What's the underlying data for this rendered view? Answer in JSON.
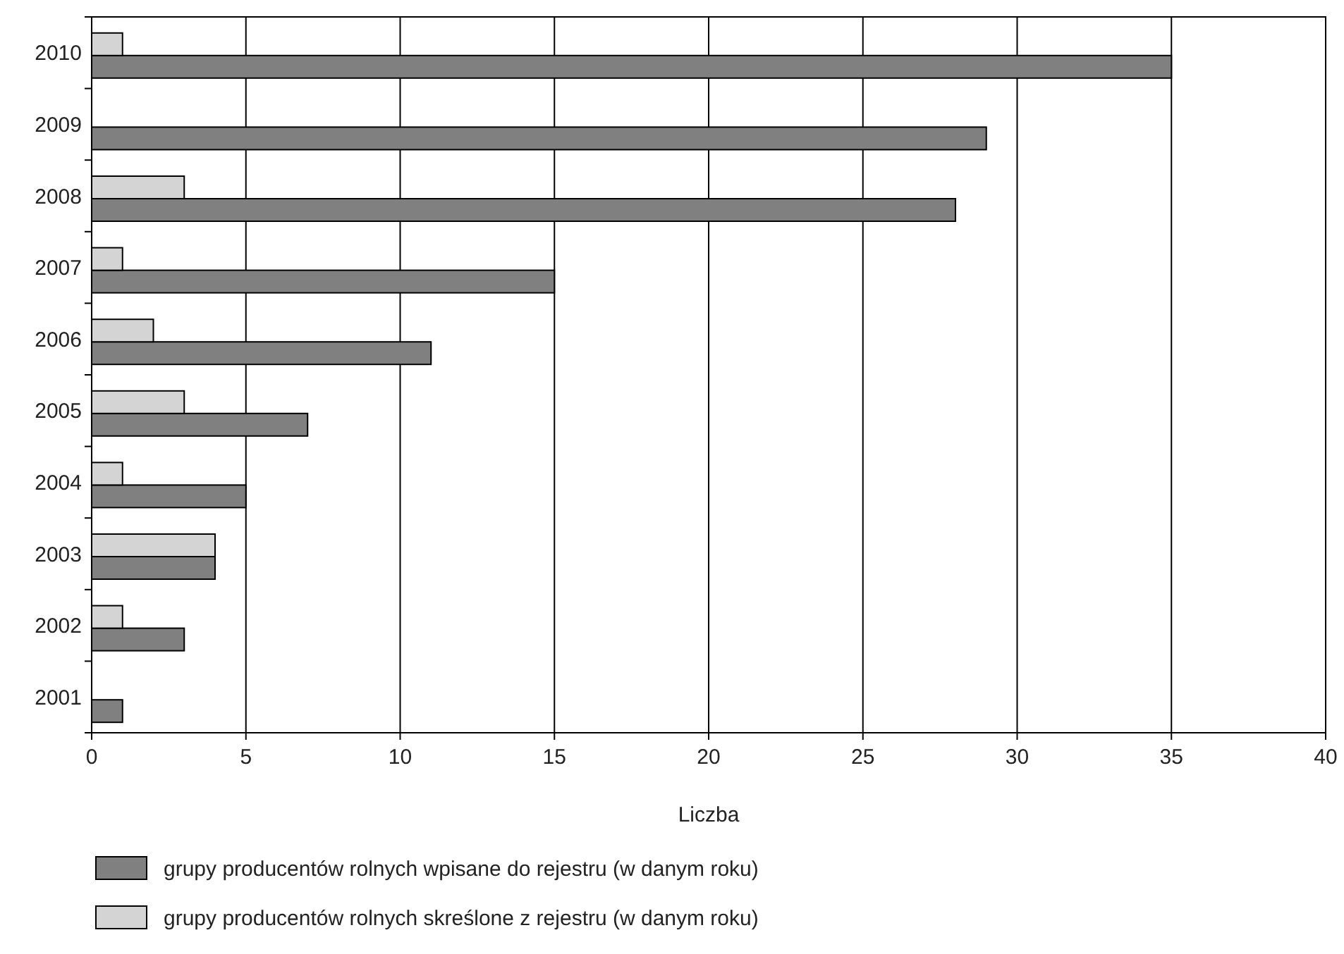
{
  "chart_data": {
    "type": "bar",
    "orientation": "horizontal",
    "xlabel": "Liczba",
    "categories": [
      "2010",
      "2009",
      "2008",
      "2007",
      "2006",
      "2005",
      "2004",
      "2003",
      "2002",
      "2001"
    ],
    "series": [
      {
        "name": "grupy producentów rolnych wpisane do rejestru (w danym roku)",
        "color": "#808080",
        "values": [
          35,
          29,
          28,
          15,
          11,
          7,
          5,
          4,
          3,
          1
        ]
      },
      {
        "name": "grupy producentów rolnych skreślone z rejestru (w danym roku)",
        "color": "#d4d4d4",
        "values": [
          1,
          null,
          3,
          1,
          2,
          3,
          1,
          4,
          1,
          null
        ]
      }
    ],
    "xlim": [
      0,
      40
    ],
    "xticks": [
      0,
      5,
      10,
      15,
      20,
      25,
      30,
      35,
      40
    ],
    "grid": "x",
    "legend": "bottom"
  }
}
